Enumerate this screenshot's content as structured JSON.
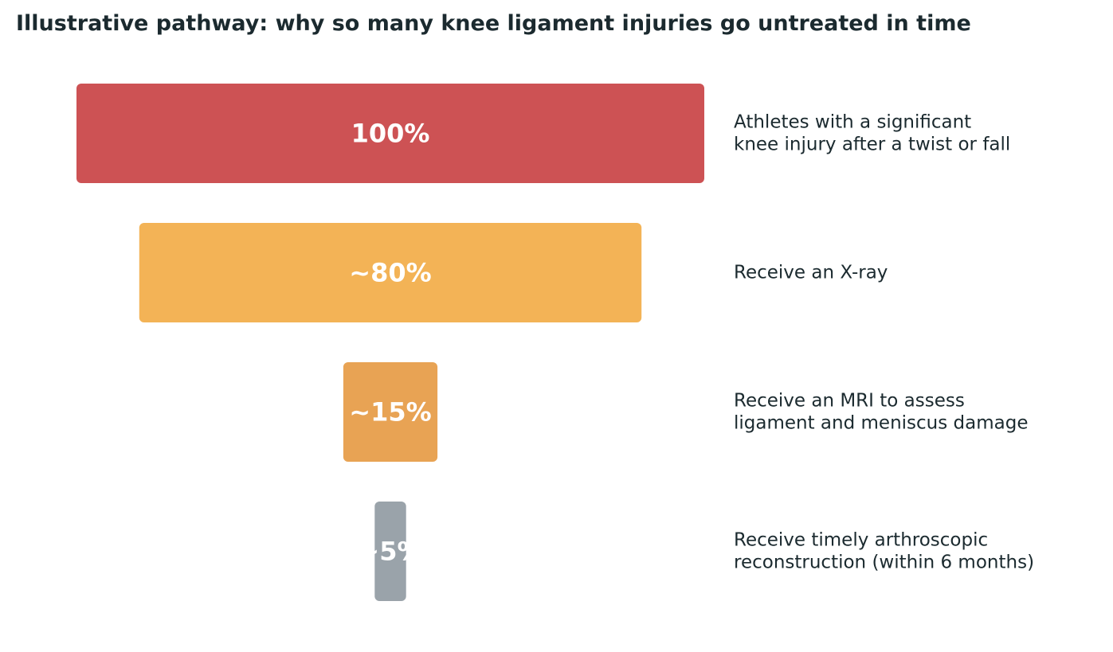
{
  "chart_data": {
    "type": "bar",
    "orientation": "horizontal-funnel",
    "title": "Illustrative pathway: why so many knee ligament injuries go untreated in time",
    "stages": [
      {
        "value_label": "100%",
        "value": 100,
        "label_lines": [
          "Athletes with a significant",
          "knee injury after a twist or fall"
        ],
        "color": "#cd5254"
      },
      {
        "value_label": "~80%",
        "value": 80,
        "label_lines": [
          "Receive an X-ray"
        ],
        "color": "#f3b356"
      },
      {
        "value_label": "~15%",
        "value": 15,
        "label_lines": [
          "Receive an MRI to assess",
          "ligament and meniscus damage"
        ],
        "color": "#e8a354"
      },
      {
        "value_label": "~5%",
        "value": 5,
        "label_lines": [
          "Receive timely arthroscopic",
          "reconstruction (within 6 months)"
        ],
        "color": "#9aa3aa"
      }
    ],
    "grid": false,
    "legend": "none"
  }
}
